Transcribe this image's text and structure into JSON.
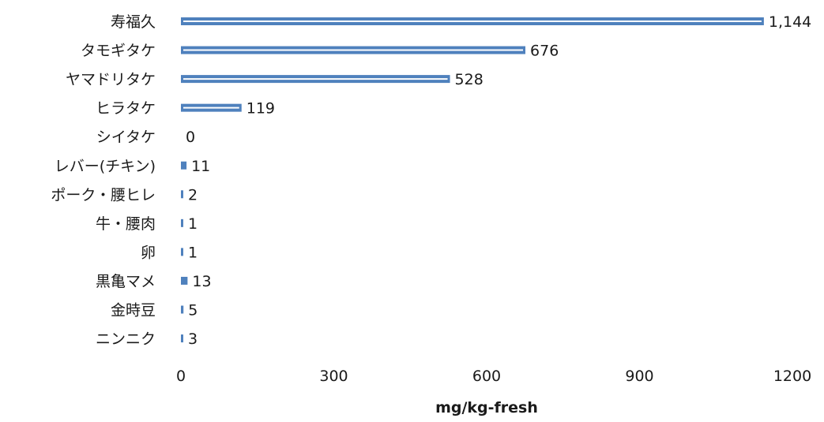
{
  "chart_data": {
    "type": "bar",
    "orientation": "horizontal",
    "categories": [
      "寿福久",
      "タモギタケ",
      "ヤマドリタケ",
      "ヒラタケ",
      "シイタケ",
      "レバー(チキン)",
      "ポーク・腰ヒレ",
      "牛・腰肉",
      "卵",
      "黒亀マメ",
      "金時豆",
      "ニンニク"
    ],
    "values": [
      1144,
      676,
      528,
      119,
      0,
      11,
      2,
      1,
      1,
      13,
      5,
      3
    ],
    "value_labels": [
      "1,144",
      "676",
      "528",
      "119",
      "0",
      "11",
      "2",
      "1",
      "1",
      "13",
      "5",
      "3"
    ],
    "xlabel": "mg/kg-fresh",
    "ylabel": "",
    "xlim": [
      0,
      1200
    ],
    "ticks": [
      0,
      300,
      600,
      900,
      1200
    ],
    "tick_labels": [
      "0",
      "300",
      "600",
      "900",
      "1200"
    ],
    "grid": false,
    "legend": "none",
    "bar_color": "#4f81bd"
  }
}
